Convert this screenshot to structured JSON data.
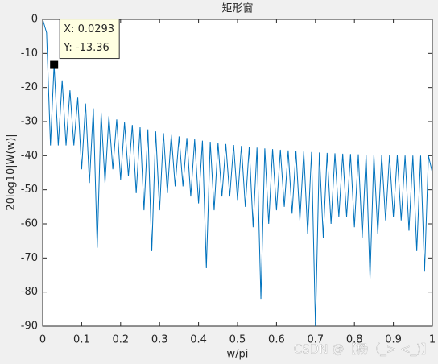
{
  "chart_data": {
    "type": "line",
    "title": "矩形窗",
    "x_label": "w/pi",
    "y_label": "20log10|W(w)|",
    "x": [
      0,
      0.01,
      0.02,
      0.0293,
      0.04,
      0.05,
      0.06,
      0.07,
      0.08,
      0.09,
      0.1,
      0.11,
      0.12,
      0.13,
      0.14,
      0.15,
      0.16,
      0.17,
      0.18,
      0.19,
      0.2,
      0.21,
      0.22,
      0.23,
      0.24,
      0.25,
      0.26,
      0.27,
      0.28,
      0.29,
      0.3,
      0.31,
      0.32,
      0.33,
      0.34,
      0.35,
      0.36,
      0.37,
      0.38,
      0.39,
      0.4,
      0.41,
      0.42,
      0.43,
      0.44,
      0.45,
      0.46,
      0.47,
      0.48,
      0.49,
      0.5,
      0.51,
      0.52,
      0.53,
      0.54,
      0.55,
      0.56,
      0.57,
      0.58,
      0.59,
      0.6,
      0.61,
      0.62,
      0.63,
      0.64,
      0.65,
      0.66,
      0.67,
      0.68,
      0.69,
      0.7,
      0.71,
      0.72,
      0.73,
      0.74,
      0.75,
      0.76,
      0.77,
      0.78,
      0.79,
      0.8,
      0.81,
      0.82,
      0.83,
      0.84,
      0.85,
      0.86,
      0.87,
      0.88,
      0.89,
      0.9,
      0.91,
      0.92,
      0.93,
      0.94,
      0.95,
      0.96,
      0.97,
      0.98,
      0.99,
      1
    ],
    "values": [
      0,
      -3.92,
      -37,
      -13.36,
      -37,
      -17.89,
      -37,
      -20.81,
      -37,
      -22.98,
      -44,
      -24.71,
      -48,
      -26.14,
      -67,
      -27.36,
      -48,
      -28.43,
      -44,
      -29.37,
      -47,
      -30.21,
      -46,
      -30.97,
      -51,
      -31.65,
      -56,
      -32.29,
      -68,
      -32.87,
      -56,
      -33.4,
      -51,
      -33.9,
      -49,
      -34.36,
      -49,
      -34.79,
      -52,
      -35.21,
      -54,
      -35.59,
      -73,
      -35.92,
      -56,
      -36.25,
      -52,
      -36.56,
      -52,
      -36.85,
      -53,
      -37.12,
      -55,
      -37.38,
      -61,
      -37.62,
      -82,
      -37.85,
      -60,
      -38.06,
      -56,
      -38.26,
      -55,
      -38.45,
      -57,
      -38.62,
      -59,
      -38.78,
      -63,
      -38.93,
      -90,
      -39.07,
      -64,
      -39.2,
      -60,
      -39.31,
      -58,
      -39.42,
      -58,
      -39.52,
      -61,
      -39.61,
      -64,
      -39.69,
      -76,
      -39.76,
      -63,
      -39.82,
      -59,
      -39.87,
      -58,
      -39.91,
      -59,
      -39.95,
      -62,
      -39.97,
      -68,
      -39.99,
      -74,
      -40,
      -45
    ],
    "color": "#0072bd",
    "xlim": [
      0,
      1
    ],
    "xticks": [
      0,
      0.1,
      0.2,
      0.3,
      0.4,
      0.5,
      0.6,
      0.7,
      0.8,
      0.9,
      1
    ],
    "ylim": [
      -90,
      0
    ],
    "yticks": [
      -90,
      -80,
      -70,
      -60,
      -50,
      -40,
      -30,
      -20,
      -10,
      0
    ],
    "grid": false,
    "annotation": {
      "x": 0.0293,
      "y": -13.36,
      "label_x": "X: 0.0293",
      "label_y": "Y: -13.36"
    },
    "watermark": "CSDN @【杨（_> <_)】"
  }
}
